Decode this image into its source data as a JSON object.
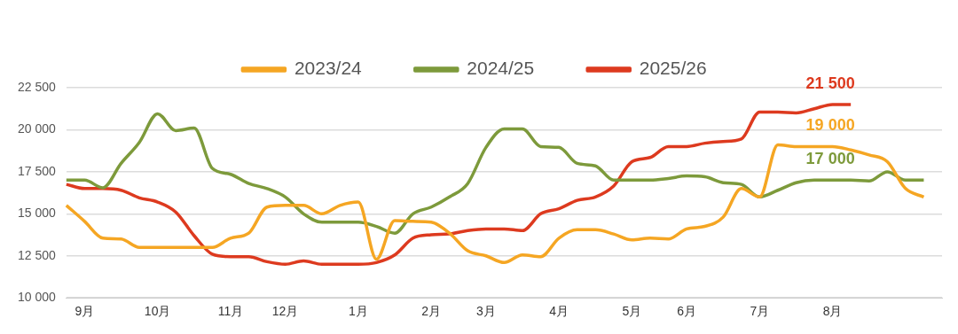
{
  "chart_data": {
    "type": "line",
    "categories": [
      null,
      "9月",
      null,
      null,
      null,
      "10月",
      null,
      null,
      null,
      "11月",
      null,
      null,
      "12月",
      null,
      null,
      null,
      "1月",
      null,
      null,
      null,
      "2月",
      null,
      null,
      "3月",
      null,
      null,
      null,
      "4月",
      null,
      null,
      null,
      "5月",
      null,
      null,
      "6月",
      null,
      null,
      null,
      "7月",
      null,
      null,
      null,
      "8月",
      null,
      null,
      null,
      null,
      null,
      null
    ],
    "series": [
      {
        "name": "2023/24",
        "color": "#f5a623",
        "values": [
          15500,
          14550,
          13550,
          13500,
          13000,
          13000,
          13000,
          13000,
          13000,
          13550,
          13850,
          15400,
          15500,
          15500,
          15000,
          15500,
          15700,
          12300,
          14600,
          14550,
          14500,
          13850,
          12800,
          12500,
          12100,
          12550,
          12450,
          13550,
          14050,
          14050,
          13800,
          13450,
          13550,
          13500,
          14100,
          14250,
          14800,
          16500,
          16000,
          19100,
          19000,
          19000,
          19000,
          18800,
          18500,
          18100,
          16500,
          16000,
          null
        ]
      },
      {
        "name": "2024/25",
        "color": "#7d9a3b",
        "values": [
          17000,
          17000,
          16550,
          18000,
          19250,
          20950,
          19950,
          20100,
          17700,
          17350,
          16800,
          16500,
          16000,
          15000,
          14500,
          14500,
          14500,
          14250,
          13850,
          15000,
          15400,
          16000,
          16800,
          18950,
          20050,
          20050,
          19000,
          18950,
          18000,
          17850,
          17000,
          17000,
          17000,
          17100,
          17250,
          17200,
          16850,
          16750,
          16000,
          16400,
          16850,
          17000,
          17000,
          17000,
          16950,
          17500,
          17000,
          17000,
          null
        ]
      },
      {
        "name": "2025/26",
        "color": "#dd3a1f",
        "values": [
          16750,
          16500,
          16500,
          16400,
          15950,
          15700,
          15100,
          13700,
          12600,
          12450,
          12450,
          12150,
          12000,
          12200,
          12000,
          12000,
          12000,
          12100,
          12550,
          13550,
          13750,
          13800,
          14000,
          14100,
          14100,
          14000,
          15000,
          15300,
          15800,
          16000,
          16650,
          18100,
          18350,
          19000,
          19000,
          19200,
          19300,
          19450,
          21050,
          21050,
          21000,
          21250,
          21500,
          21500,
          null,
          null,
          null,
          null,
          null
        ]
      }
    ],
    "annotations": [
      {
        "text": "19 000",
        "y": 19000
      },
      {
        "text": "17 000",
        "y": 17000
      },
      {
        "text": "21 500",
        "y": 21500
      }
    ],
    "ylim": [
      10000,
      22500
    ],
    "yticks": [
      {
        "value": 10000,
        "label": "10 000"
      },
      {
        "value": 12500,
        "label": "12 500"
      },
      {
        "value": 15000,
        "label": "15 000"
      },
      {
        "value": 17500,
        "label": "17 500"
      },
      {
        "value": 20000,
        "label": "20 000"
      },
      {
        "value": 22500,
        "label": "22 500"
      }
    ],
    "grid": "y",
    "legend": "top",
    "marker": "none",
    "line_style": "solid"
  }
}
